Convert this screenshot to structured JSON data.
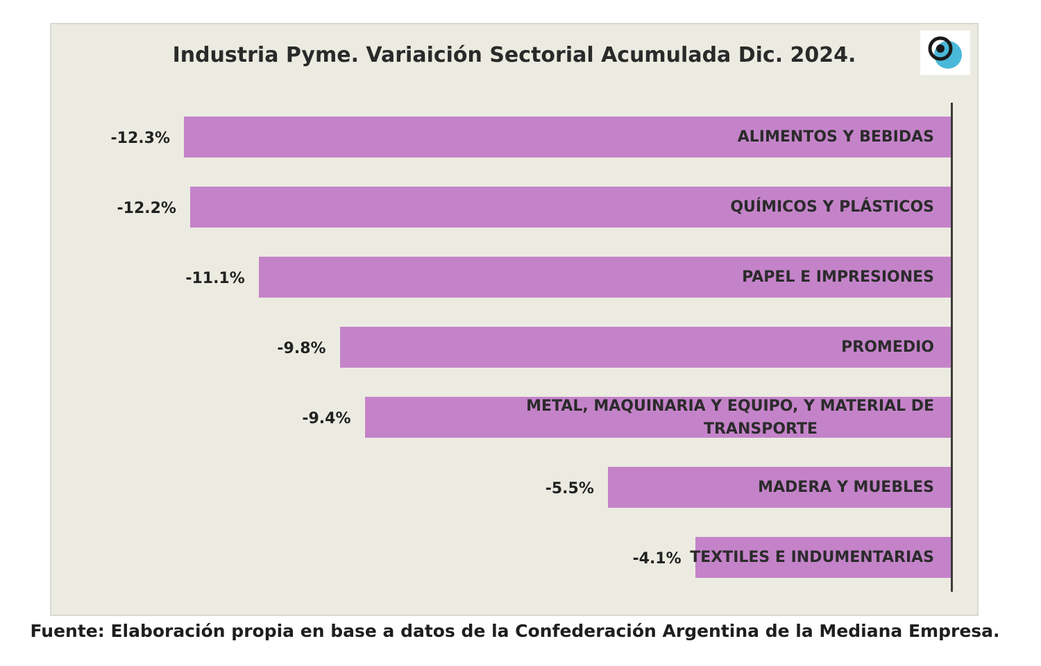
{
  "chart_data": {
    "type": "bar",
    "orientation": "horizontal",
    "title": "Industria Pyme. Variaición Sectorial Acumulada Dic. 2024.",
    "categories": [
      "ALIMENTOS Y BEBIDAS",
      "QUÍMICOS Y PLÁSTICOS",
      "PAPEL E IMPRESIONES",
      "PROMEDIO",
      "METAL, MAQUINARIA Y EQUIPO, Y MATERIAL DE TRANSPORTE",
      "MADERA Y MUEBLES",
      "TEXTILES E INDUMENTARIAS"
    ],
    "values": [
      -12.3,
      -12.2,
      -11.1,
      -9.8,
      -9.4,
      -5.5,
      -4.1
    ],
    "value_labels": [
      "-12.3%",
      "-12.2%",
      "-11.1%",
      "-9.8%",
      "-9.4%",
      "-5.5%",
      "-4.1%"
    ],
    "xlabel": "",
    "ylabel": "",
    "grid": false,
    "legend": "none",
    "bar_color": "#c483c9"
  },
  "source": "Fuente: Elaboración propia en base a datos de la Confederación Argentina de la Mediana Empresa.",
  "logo": {
    "icon": "circle-logo-icon",
    "colors": [
      "#1a1a1a",
      "#4ab8d8"
    ]
  }
}
